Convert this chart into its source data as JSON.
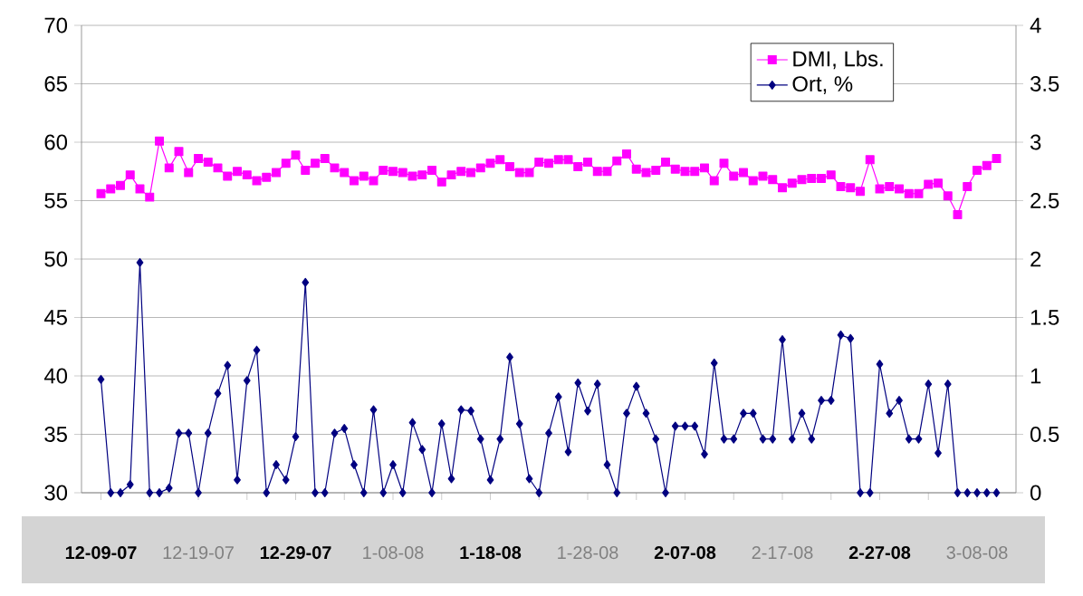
{
  "chart_data": {
    "type": "line",
    "categories": [
      "12-09-07",
      null,
      null,
      null,
      null,
      null,
      null,
      null,
      null,
      null,
      "12-19-07",
      null,
      null,
      null,
      null,
      null,
      null,
      null,
      null,
      null,
      "12-29-07",
      null,
      null,
      null,
      null,
      null,
      null,
      null,
      null,
      null,
      "1-08-08",
      null,
      null,
      null,
      null,
      null,
      null,
      null,
      null,
      null,
      "1-18-08",
      null,
      null,
      null,
      null,
      null,
      null,
      null,
      null,
      null,
      "1-28-08",
      null,
      null,
      null,
      null,
      null,
      null,
      null,
      null,
      null,
      "2-07-08",
      null,
      null,
      null,
      null,
      null,
      null,
      null,
      null,
      null,
      "2-17-08",
      null,
      null,
      null,
      null,
      null,
      null,
      null,
      null,
      null,
      "2-27-08",
      null,
      null,
      null,
      null,
      null,
      null,
      null,
      null,
      null,
      "3-08-08",
      null,
      null
    ],
    "series": [
      {
        "name": "DMI, Lbs.",
        "color": "#ff00ff",
        "marker": "square",
        "values": [
          55.6,
          56.0,
          56.3,
          57.2,
          56.0,
          55.3,
          60.1,
          57.8,
          59.2,
          57.4,
          58.6,
          58.3,
          57.8,
          57.1,
          57.5,
          57.2,
          56.7,
          57.0,
          57.4,
          58.2,
          58.9,
          57.6,
          58.2,
          58.6,
          57.8,
          57.4,
          56.7,
          57.1,
          56.7,
          57.6,
          57.5,
          57.4,
          57.1,
          57.2,
          57.6,
          56.6,
          57.2,
          57.5,
          57.4,
          57.8,
          58.2,
          58.5,
          57.9,
          57.4,
          57.4,
          58.3,
          58.2,
          58.5,
          58.5,
          57.9,
          58.3,
          57.5,
          57.5,
          58.4,
          59.0,
          57.7,
          57.4,
          57.6,
          58.3,
          57.7,
          57.5,
          57.5,
          57.8,
          56.7,
          58.2,
          57.1,
          57.4,
          56.7,
          57.1,
          56.8,
          56.1,
          56.5,
          56.8,
          56.9,
          56.9,
          57.2,
          56.2,
          56.1,
          55.8,
          58.5,
          56.0,
          56.2,
          56.0,
          55.6,
          55.6,
          56.4,
          56.5,
          55.4,
          53.8,
          56.2,
          57.6,
          58.0,
          58.6
        ]
      },
      {
        "name": "Ort, %",
        "color": "#000080",
        "marker": "diamond",
        "axis": "y2",
        "values": [
          0.97,
          0,
          0,
          0.07,
          1.97,
          0,
          0,
          0.04,
          0.51,
          0.51,
          0,
          0.51,
          0.85,
          1.09,
          0.11,
          0.96,
          1.22,
          0,
          0.24,
          0.11,
          0.48,
          1.8,
          0,
          0,
          0.51,
          0.55,
          0.24,
          0,
          0.71,
          0,
          0.24,
          0,
          0.6,
          0.37,
          0,
          0.59,
          0.12,
          0.71,
          0.7,
          0.46,
          0.11,
          0.46,
          1.16,
          0.59,
          0.12,
          0,
          0.51,
          0.82,
          0.35,
          0.94,
          0.7,
          0.93,
          0.24,
          0,
          0.68,
          0.91,
          0.68,
          0.46,
          0,
          0.57,
          0.57,
          0.57,
          0.33,
          1.11,
          0.46,
          0.46,
          0.68,
          0.68,
          0.46,
          0.46,
          1.31,
          0.46,
          0.68,
          0.46,
          0.79,
          0.79,
          1.35,
          1.32,
          0,
          0,
          1.1,
          0.68,
          0.79,
          0.46,
          0.46,
          0.93,
          0.34,
          0.93,
          0,
          0,
          0,
          0,
          0
        ]
      }
    ],
    "ylim": [
      30,
      70
    ],
    "yticks": [
      30,
      35,
      40,
      45,
      50,
      55,
      60,
      65,
      70
    ],
    "y2lim": [
      0,
      4
    ],
    "y2ticks": [
      0,
      0.5,
      1,
      1.5,
      2,
      2.5,
      3,
      3.5,
      4
    ],
    "grid": "y",
    "legend": "top right"
  }
}
